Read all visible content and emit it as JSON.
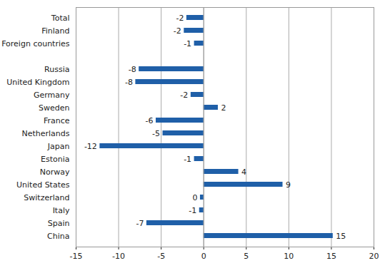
{
  "chart_data": {
    "type": "bar",
    "orientation": "horizontal",
    "categories": [
      "Total",
      "Finland",
      "Foreign countries",
      null,
      "Russia",
      "United Kingdom",
      "Germany",
      "Sweden",
      "France",
      "Netherlands",
      "Japan",
      "Estonia",
      "Norway",
      "United States",
      "Switzerland",
      "Italy",
      "Spain",
      "China"
    ],
    "values": [
      -2,
      -2.3,
      -1.1,
      null,
      -7.6,
      -8.0,
      -1.5,
      1.7,
      -5.6,
      -4.8,
      -12.2,
      -1.1,
      4.1,
      9.3,
      -0.4,
      -0.5,
      -6.7,
      15.2
    ],
    "value_labels": [
      "-2",
      "-2",
      "-1",
      null,
      "-8",
      "-8",
      "-2",
      "2",
      "-6",
      "-5",
      "-12",
      "-1",
      "4",
      "9",
      "0",
      "-1",
      "-7",
      "15"
    ],
    "data_labels": true,
    "color": "#1f5fa8",
    "xlim": [
      -15,
      20
    ],
    "xticks": [
      -15,
      -10,
      -5,
      0,
      5,
      10,
      15,
      20
    ],
    "grid": true
  }
}
